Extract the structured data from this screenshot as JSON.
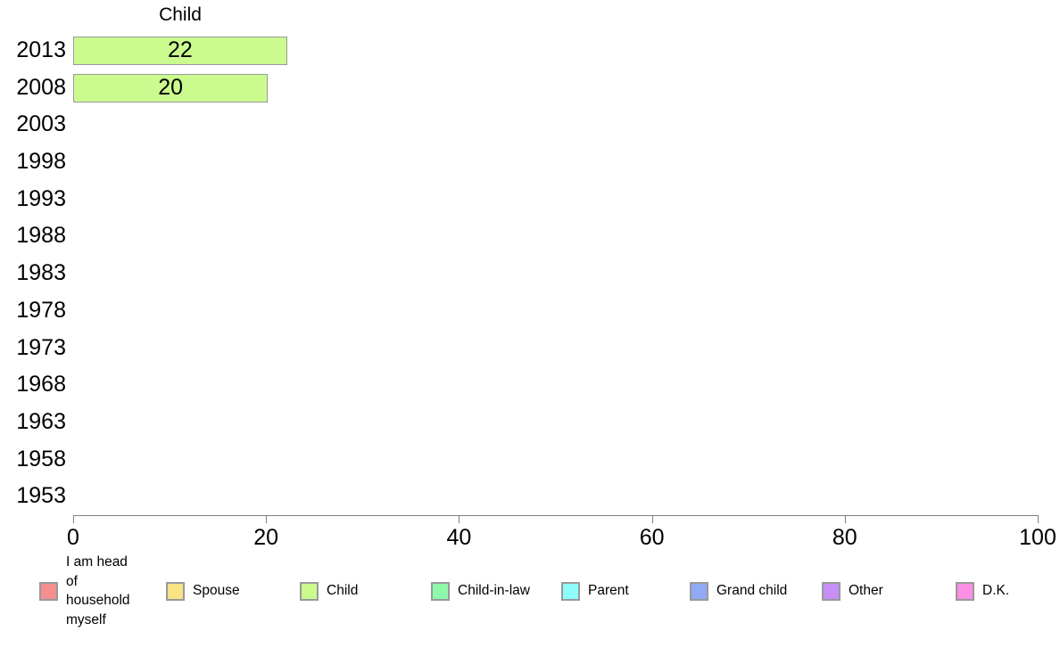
{
  "chart_data": {
    "type": "bar",
    "orientation": "horizontal",
    "title": "Child",
    "categories": [
      "2013",
      "2008",
      "2003",
      "1998",
      "1993",
      "1988",
      "1983",
      "1978",
      "1973",
      "1968",
      "1963",
      "1958",
      "1953"
    ],
    "values": [
      22,
      20,
      null,
      null,
      null,
      null,
      null,
      null,
      null,
      null,
      null,
      null,
      null
    ],
    "value_labels_shown": true,
    "xlabel": "",
    "ylabel": "",
    "xlim": [
      0,
      100
    ],
    "x_ticks": [
      0,
      20,
      40,
      60,
      80,
      100
    ],
    "grid": false,
    "bar_color": "#CBFB8F",
    "bar_border_color": "#999999",
    "axis_color": "#7f7f7f",
    "legend_position": "bottom",
    "legend": [
      {
        "label": "I am head of household myself",
        "color": "#F58F8F"
      },
      {
        "label": "Spouse",
        "color": "#F8E385"
      },
      {
        "label": "Child",
        "color": "#CBFB8F"
      },
      {
        "label": "Child-in-law",
        "color": "#8FF9AB"
      },
      {
        "label": "Parent",
        "color": "#8FFCFC"
      },
      {
        "label": "Grand child",
        "color": "#92A9F6"
      },
      {
        "label": "Other",
        "color": "#C68FF6"
      },
      {
        "label": "D.K.",
        "color": "#FB8FE3"
      }
    ]
  }
}
